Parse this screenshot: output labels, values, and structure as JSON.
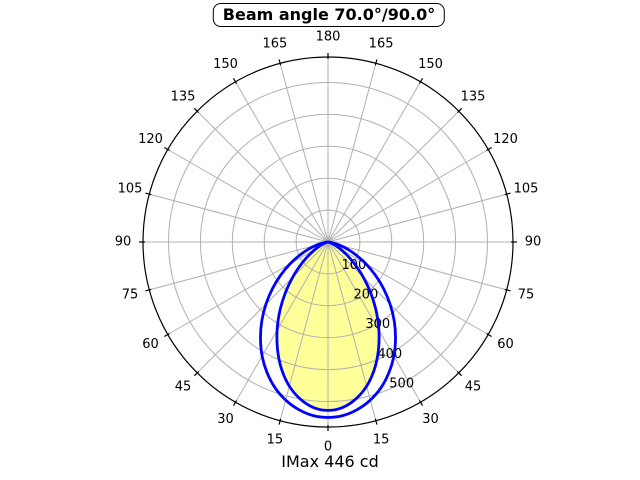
{
  "title": "Beam angle 70.0°/90.0°",
  "footer": "IMax 446 cd",
  "colors": {
    "curve_blue": "#0000ff",
    "fill_yellow": "#ffff99",
    "grid_gray": "#b0b0b0",
    "axis_black": "#000000",
    "text_black": "#000000",
    "background": "#ffffff"
  },
  "chart_data": {
    "type": "line",
    "subtype": "polar-intensity-diagram",
    "title": "Beam angle 70.0°/90.0°",
    "beam_angles_deg": [
      70.0,
      90.0
    ],
    "imax": {
      "label": "IMax 446 cd",
      "value": 446,
      "unit": "cd"
    },
    "orientation": "0° at bottom (nadir), 180° at top, symmetric left/right",
    "theta_tick_labels_deg": [
      0,
      15,
      30,
      45,
      60,
      75,
      90,
      105,
      120,
      135,
      150,
      165,
      180
    ],
    "theta_grid_step_deg": 15,
    "r_ticks": [
      100,
      200,
      300,
      400,
      500
    ],
    "r_max": 580,
    "grid": true,
    "legend_position": "none",
    "angles_abs_deg": [
      0,
      5,
      10,
      15,
      20,
      25,
      30,
      35,
      40,
      45,
      50,
      55,
      60,
      65,
      70,
      75,
      80,
      85,
      90
    ],
    "symmetric": true,
    "series": [
      {
        "name": "beam_90deg_plane",
        "peak": 550,
        "filled": false,
        "values": [
          550,
          546,
          533,
          513,
          486,
          452,
          413,
          369,
          323,
          275,
          227,
          181,
          138,
          98,
          64,
          37,
          17,
          4,
          0
        ]
      },
      {
        "name": "beam_70deg_plane",
        "peak": 528,
        "filled": true,
        "values": [
          528,
          521,
          500,
          468,
          425,
          374,
          319,
          263,
          208,
          157,
          112,
          75,
          47,
          26,
          12,
          5,
          1,
          0,
          0
        ]
      }
    ]
  }
}
